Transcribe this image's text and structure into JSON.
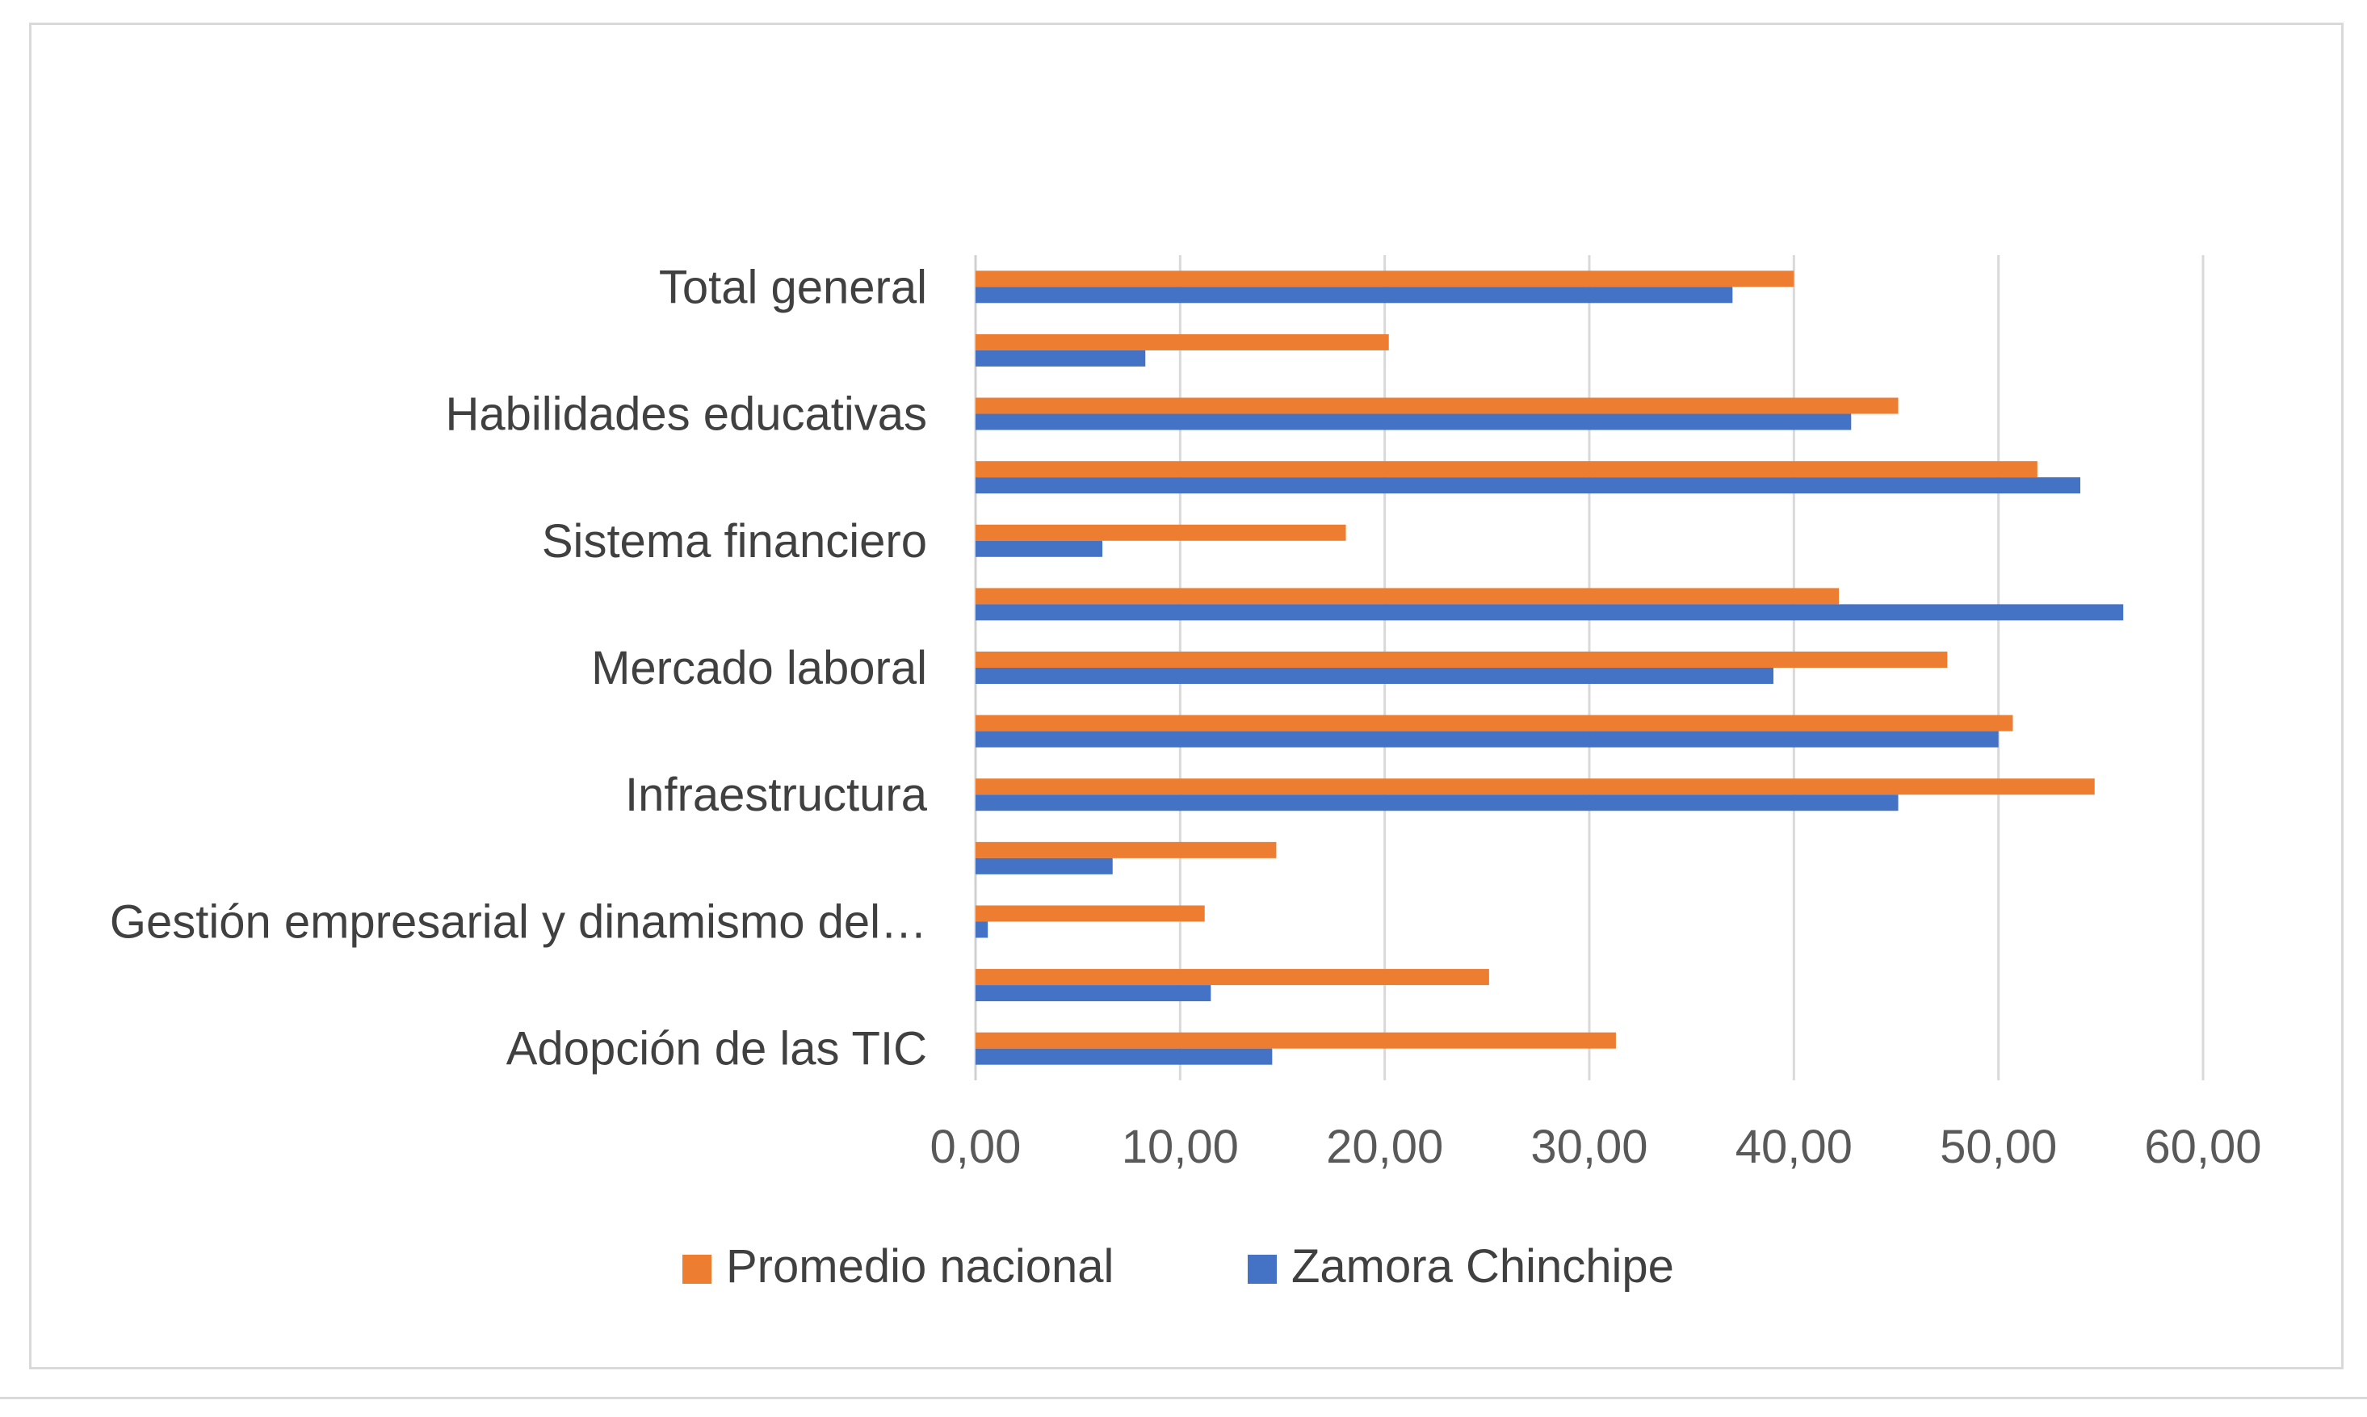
{
  "chart_data": {
    "type": "bar",
    "orientation": "horizontal",
    "categories": [
      "Adopción de las TIC",
      "",
      "Gestión empresarial y dinamismo del…",
      "",
      "Infraestructura",
      "",
      "Mercado laboral",
      "",
      "Sistema financiero",
      "",
      "Habilidades educativas",
      "",
      "Total general"
    ],
    "series": [
      {
        "name": "Promedio nacional",
        "color": "#ed7d31",
        "values": [
          31.3,
          25.1,
          11.2,
          14.7,
          54.7,
          50.7,
          47.5,
          42.2,
          18.1,
          51.9,
          45.1,
          20.2,
          40.0
        ]
      },
      {
        "name": "Zamora Chinchipe",
        "color": "#4472c4",
        "values": [
          14.5,
          11.5,
          0.6,
          6.7,
          45.1,
          50.0,
          39.0,
          56.1,
          6.2,
          54.0,
          42.8,
          8.3,
          37.0
        ]
      }
    ],
    "xlim": [
      0,
      60
    ],
    "xticks": [
      "0,00",
      "10,00",
      "20,00",
      "30,00",
      "40,00",
      "50,00",
      "60,00"
    ],
    "grid": true,
    "legend_position": "bottom",
    "title": "",
    "xlabel": "",
    "ylabel": ""
  }
}
